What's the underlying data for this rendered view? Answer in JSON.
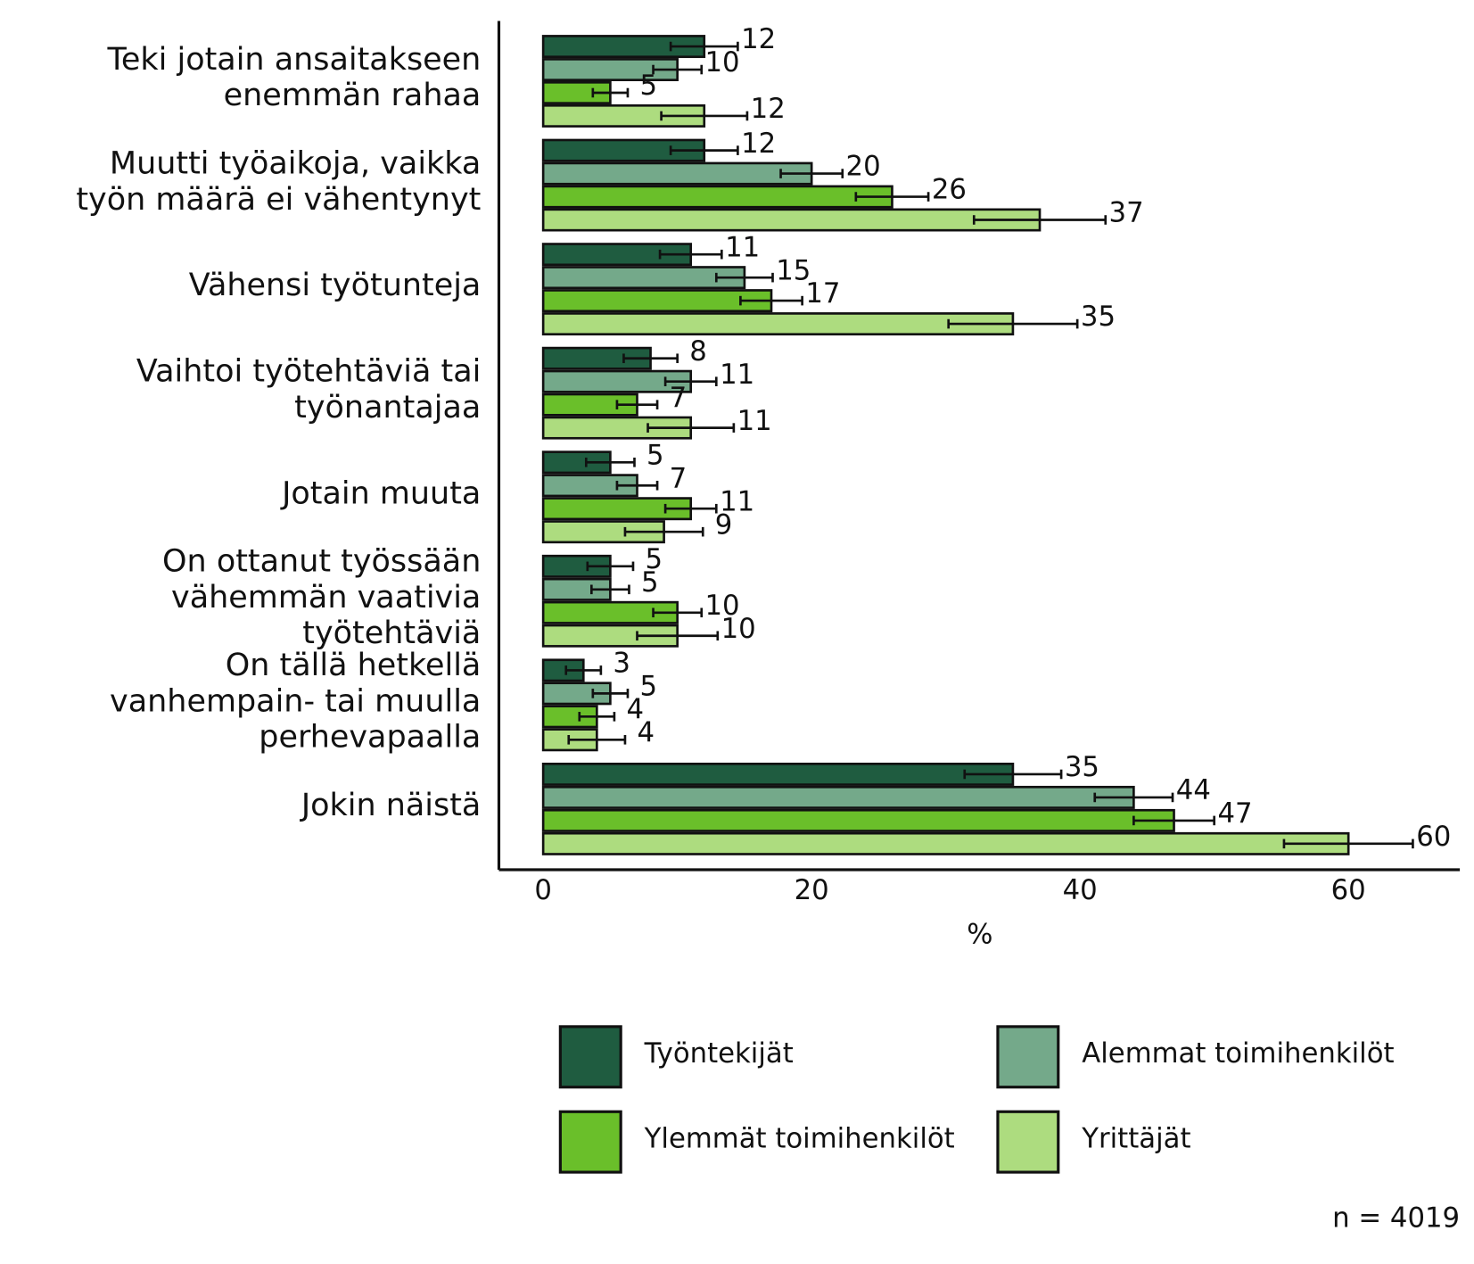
{
  "chart_data": {
    "type": "hbar",
    "categories": [
      [
        "Teki jotain ansaitakseen",
        "enemmän rahaa"
      ],
      [
        "Muutti työaikoja, vaikka",
        "työn määrä ei vähentynyt"
      ],
      [
        "Vähensi työtunteja"
      ],
      [
        "Vaihtoi työtehtäviä tai",
        "työnantajaa"
      ],
      [
        "Jotain muuta"
      ],
      [
        "On ottanut työssään",
        "vähemmän vaativia",
        "työtehtäviä"
      ],
      [
        "On tällä hetkellä",
        "vanhempain- tai muulla",
        "perhevapaalla"
      ],
      [
        "Jokin näistä"
      ]
    ],
    "series": [
      {
        "name": "Työntekijät",
        "color": "#1f5c40",
        "values": [
          12,
          12,
          11,
          8,
          5,
          5,
          3,
          35
        ],
        "errors": [
          2.5,
          2.5,
          2.3,
          2,
          1.8,
          1.7,
          1.3,
          3.6
        ]
      },
      {
        "name": "Alemmat toimihenkilöt",
        "color": "#74a98a",
        "values": [
          10,
          20,
          15,
          11,
          7,
          5,
          5,
          44
        ],
        "errors": [
          1.8,
          2.3,
          2.1,
          1.9,
          1.5,
          1.4,
          1.3,
          2.9
        ]
      },
      {
        "name": "Ylemmät toimihenkilöt",
        "color": "#6abf2a",
        "values": [
          5,
          26,
          17,
          7,
          11,
          10,
          4,
          47
        ],
        "errors": [
          1.3,
          2.7,
          2.3,
          1.5,
          1.9,
          1.8,
          1.3,
          3.0
        ]
      },
      {
        "name": "Yrittäjät",
        "color": "#addc7f",
        "values": [
          12,
          37,
          35,
          11,
          9,
          10,
          4,
          60
        ],
        "errors": [
          3.2,
          4.9,
          4.8,
          3.2,
          2.9,
          3.0,
          2.1,
          4.8
        ]
      }
    ],
    "x_label": "%",
    "xlim": [
      -3.3,
      68.3
    ],
    "xticks": [
      0,
      20,
      40,
      60
    ],
    "note": "n = 4019"
  }
}
